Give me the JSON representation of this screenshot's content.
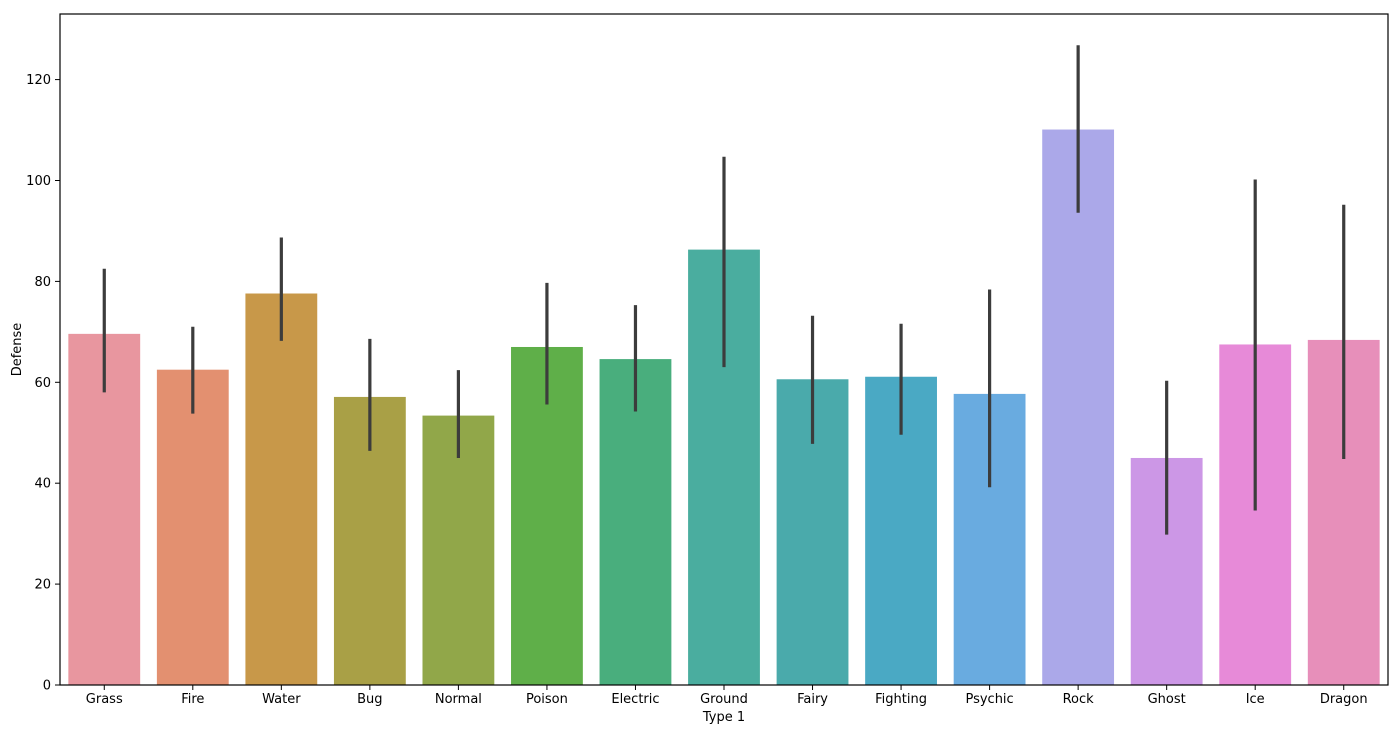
{
  "chart_data": {
    "type": "bar",
    "xlabel": "Type 1",
    "ylabel": "Defense",
    "ylim": [
      0,
      133
    ],
    "yticks": [
      0,
      20,
      40,
      60,
      80,
      100,
      120
    ],
    "grid": false,
    "legend": "none",
    "error_bars": true,
    "categories": [
      "Grass",
      "Fire",
      "Water",
      "Bug",
      "Normal",
      "Poison",
      "Electric",
      "Ground",
      "Fairy",
      "Fighting",
      "Psychic",
      "Rock",
      "Ghost",
      "Ice",
      "Dragon"
    ],
    "values": [
      69.5,
      62.4,
      77.5,
      57.0,
      53.3,
      66.9,
      64.5,
      86.2,
      60.5,
      61.0,
      57.6,
      110.0,
      44.9,
      67.4,
      68.3
    ],
    "error_low": [
      58.0,
      53.8,
      68.2,
      46.4,
      45.0,
      55.6,
      54.2,
      63.0,
      47.8,
      49.6,
      39.2,
      93.6,
      29.8,
      34.6,
      44.8
    ],
    "error_high": [
      82.5,
      71.0,
      88.7,
      68.6,
      62.4,
      79.7,
      75.3,
      104.7,
      73.2,
      71.6,
      78.4,
      126.8,
      60.3,
      100.2,
      95.2
    ],
    "colors": [
      "#e8969f",
      "#e39070",
      "#c89849",
      "#a9a046",
      "#91a749",
      "#5faf49",
      "#49ae7d",
      "#4aad9f",
      "#4aaaab",
      "#4aa9c4",
      "#69abe0",
      "#aba8e9",
      "#cc97e6",
      "#e78ad8",
      "#e78fba"
    ]
  }
}
